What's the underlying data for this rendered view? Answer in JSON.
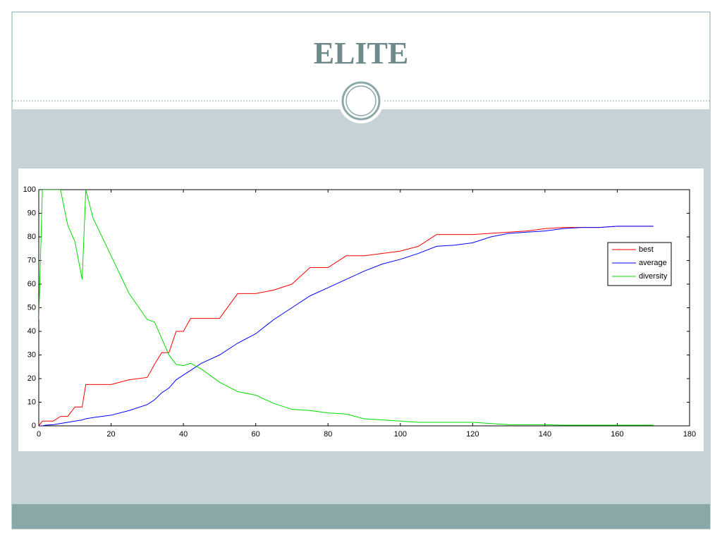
{
  "slide": {
    "title": "ELITE"
  },
  "chart_data": {
    "type": "line",
    "x": [
      0,
      1,
      2,
      4,
      6,
      8,
      10,
      12,
      13,
      15,
      20,
      25,
      30,
      32,
      34,
      36,
      38,
      40,
      42,
      45,
      50,
      55,
      60,
      65,
      70,
      75,
      80,
      85,
      90,
      95,
      100,
      105,
      110,
      115,
      120,
      125,
      130,
      135,
      140,
      145,
      150,
      155,
      160,
      165,
      170
    ],
    "series": [
      {
        "name": "best",
        "color": "#ff0000",
        "values": [
          0,
          2,
          2,
          2,
          4,
          4,
          8,
          8,
          17.5,
          17.5,
          17.5,
          19.5,
          20.5,
          26,
          31,
          31,
          40,
          40,
          45.5,
          45.5,
          45.5,
          56,
          56,
          57.5,
          60,
          67,
          67,
          72,
          72,
          73,
          74,
          76,
          81,
          81,
          81,
          81.5,
          82,
          82.5,
          83.5,
          84,
          84,
          84,
          84.5,
          84.5,
          84.5
        ]
      },
      {
        "name": "average",
        "color": "#0000ff",
        "values": [
          0,
          0,
          0.3,
          0.5,
          1,
          1.5,
          2,
          2.5,
          3,
          3.5,
          4.5,
          6.5,
          9,
          11,
          14,
          16,
          19.5,
          21.5,
          23.5,
          26.5,
          30,
          35,
          39,
          45,
          50,
          55,
          58.5,
          62,
          65.5,
          68.5,
          70.5,
          73,
          76,
          76.5,
          77.5,
          80,
          81.5,
          82,
          82.5,
          83.5,
          84,
          84,
          84.5,
          84.5,
          84.5
        ]
      },
      {
        "name": "diversity",
        "color": "#00dd00",
        "values": [
          45,
          100,
          100,
          100,
          100,
          85,
          78,
          62,
          100,
          88,
          72,
          56,
          45,
          44,
          37,
          30,
          26,
          25.5,
          26.5,
          24,
          18.5,
          14.5,
          13,
          9.5,
          7,
          6.5,
          5.5,
          5,
          3,
          2.5,
          2,
          1.5,
          1.5,
          1.5,
          1.5,
          1,
          0.5,
          0.5,
          0.5,
          0.3,
          0.3,
          0.3,
          0.3,
          0.3,
          0.3
        ]
      }
    ],
    "xlim": [
      0,
      180
    ],
    "xticks": [
      0,
      20,
      40,
      60,
      80,
      100,
      120,
      140,
      160,
      180
    ],
    "ylim": [
      0,
      100
    ],
    "yticks": [
      0,
      10,
      20,
      30,
      40,
      50,
      60,
      70,
      80,
      90,
      100
    ],
    "legend": "upper-right"
  }
}
